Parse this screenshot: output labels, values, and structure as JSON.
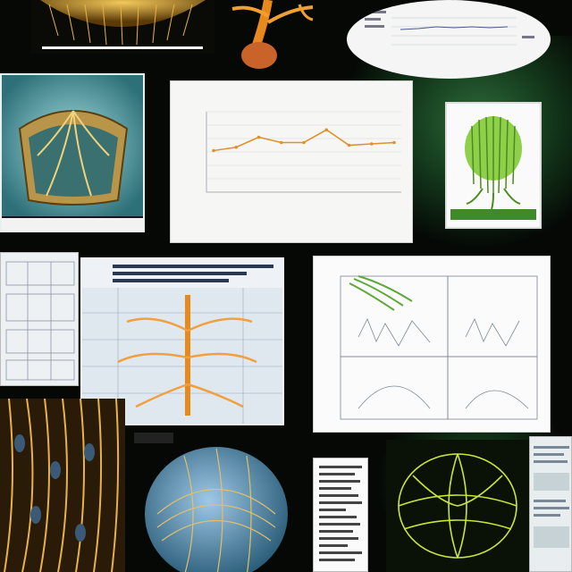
{
  "collage": {
    "title": "",
    "tiles": [
      {
        "name": "tile-golden-organ-top",
        "kind": "image"
      },
      {
        "name": "tile-orange-root",
        "kind": "image"
      },
      {
        "name": "tile-oval-line-chart",
        "kind": "chart"
      },
      {
        "name": "tile-teal-vessel",
        "kind": "image"
      },
      {
        "name": "tile-main-line-chart",
        "kind": "chart"
      },
      {
        "name": "tile-green-bundle",
        "kind": "image"
      },
      {
        "name": "tile-left-document",
        "kind": "document"
      },
      {
        "name": "tile-orange-tree-diagram",
        "kind": "diagram"
      },
      {
        "name": "tile-sketch-diagram",
        "kind": "diagram"
      },
      {
        "name": "tile-golden-mesh",
        "kind": "image"
      },
      {
        "name": "tile-blue-sphere",
        "kind": "image"
      },
      {
        "name": "tile-text-page",
        "kind": "document"
      },
      {
        "name": "tile-green-wireframe",
        "kind": "image"
      },
      {
        "name": "tile-right-document",
        "kind": "document"
      }
    ]
  },
  "colors": {
    "background": "#050805",
    "gold": "#c8962e",
    "orange": "#e8891e",
    "teal": "#5aa8b0",
    "green": "#7fc93a",
    "chart_line": "#e0922a",
    "paper": "#f6f6f4"
  },
  "chart_data": {
    "type": "line",
    "categories": [
      "",
      "",
      "",
      "",
      "",
      "",
      "",
      "",
      ""
    ],
    "values": [
      62,
      67,
      82,
      74,
      74,
      93,
      70,
      72,
      74
    ],
    "ylim": [
      0,
      120
    ],
    "grid": true,
    "legend": "none"
  }
}
